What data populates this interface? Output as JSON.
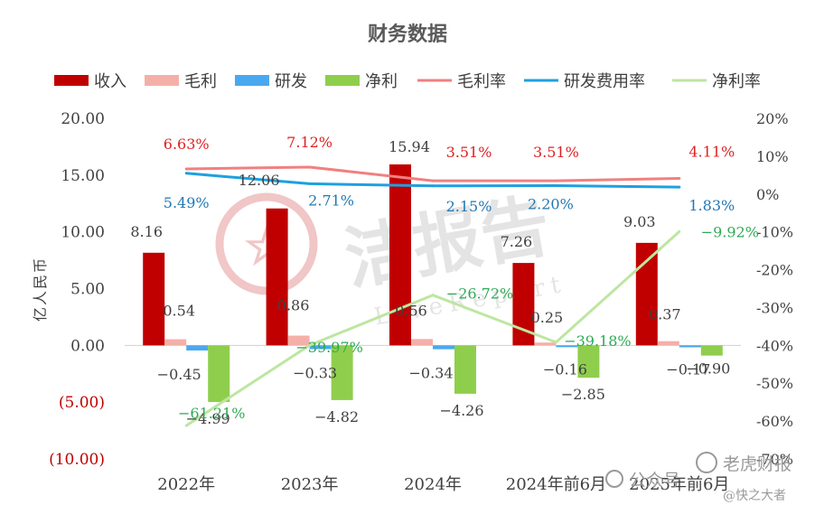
{
  "chart_data": {
    "type": "bar",
    "title": "财务数据",
    "ylabel": "亿人民币",
    "categories": [
      "2022年",
      "2023年",
      "2024年",
      "2024年前6月",
      "2025年前6月"
    ],
    "ylim": [
      -10,
      20
    ],
    "y_ticks": [
      20,
      15,
      10,
      5,
      0,
      -5,
      -10
    ],
    "y_tick_labels": [
      "20.00",
      "15.00",
      "10.00",
      "5.00",
      "0.00",
      "(5.00)",
      "(10.00)"
    ],
    "y2lim": [
      -70,
      20
    ],
    "y2_ticks": [
      20,
      10,
      0,
      -10,
      -20,
      -30,
      -40,
      -50,
      -60,
      -70
    ],
    "y2_tick_labels": [
      "20%",
      "10%",
      "0%",
      "-10%",
      "-20%",
      "-30%",
      "-40%",
      "-50%",
      "-60%",
      "-70%"
    ],
    "legend_position": "top",
    "bar_series": [
      {
        "name": "收入",
        "color": "#c00000",
        "values": [
          8.16,
          12.06,
          15.94,
          7.26,
          9.03
        ],
        "labels": [
          "8.16",
          "12.06",
          "15.94",
          "7.26",
          "9.03"
        ],
        "label_color": "#404040"
      },
      {
        "name": "毛利",
        "color": "#f4b0a8",
        "values": [
          0.54,
          0.86,
          0.56,
          0.25,
          0.37
        ],
        "labels": [
          "0.54",
          "0.86",
          "0.56",
          "0.25",
          "0.37"
        ],
        "label_color": "#404040"
      },
      {
        "name": "研发",
        "color": "#4aa8f0",
        "values": [
          -0.45,
          -0.33,
          -0.34,
          -0.16,
          -0.17
        ],
        "labels": [
          "−0.45",
          "−0.33",
          "−0.34",
          "−0.16",
          "−0.17"
        ],
        "label_color": "#404040"
      },
      {
        "name": "净利",
        "color": "#8fce4c",
        "values": [
          -4.99,
          -4.82,
          -4.26,
          -2.85,
          -0.9
        ],
        "labels": [
          "−4.99",
          "−4.82",
          "−4.26",
          "−2.85",
          "−0.90"
        ],
        "label_color": "#404040"
      }
    ],
    "line_series": [
      {
        "name": "毛利率",
        "color": "#f08080",
        "values": [
          6.63,
          7.12,
          3.51,
          3.51,
          4.11
        ],
        "labels": [
          "6.63%",
          "7.12%",
          "3.51%",
          "3.51%",
          "4.11%"
        ],
        "label_color": "#e02020"
      },
      {
        "name": "研发费用率",
        "color": "#1ea0e0",
        "values": [
          5.49,
          2.71,
          2.15,
          2.2,
          1.83
        ],
        "labels": [
          "5.49%",
          "2.71%",
          "2.15%",
          "2.20%",
          "1.83%"
        ],
        "label_color": "#1f77b4"
      },
      {
        "name": "净利率",
        "color": "#bde6a0",
        "values": [
          -61.21,
          -39.97,
          -26.72,
          -39.18,
          -9.92
        ],
        "labels": [
          "−61.21%",
          "−39.97%",
          "−26.72%",
          "−39.18%",
          "−9.92%"
        ],
        "label_color": "#2eaa55"
      }
    ],
    "negative_tick_color": "#c00000"
  },
  "watermark": {
    "main": "洁报告",
    "sub": "LiveReport"
  },
  "credit": {
    "handle": "老虎财报",
    "platform": "公众号",
    "account": "@快之大者"
  }
}
